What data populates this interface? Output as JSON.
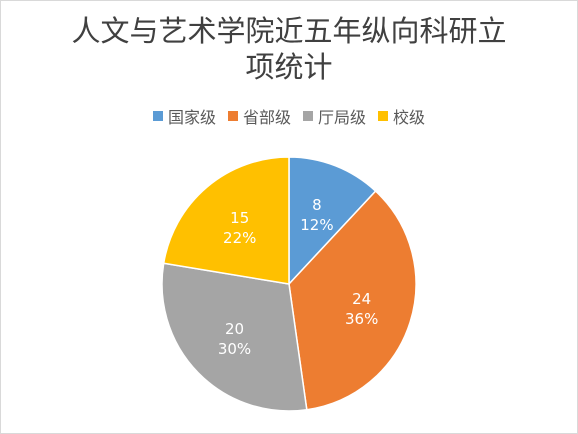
{
  "chart_data": {
    "type": "pie",
    "title_lines": [
      "人文与艺术学院近五年纵向科研立",
      "项统计"
    ],
    "categories": [
      "国家级",
      "省部级",
      "厅局级",
      "校级"
    ],
    "values": [
      8,
      24,
      20,
      15
    ],
    "percent_labels": [
      "12%",
      "36%",
      "30%",
      "22%"
    ],
    "colors": [
      "#5b9bd5",
      "#ed7d31",
      "#a5a5a5",
      "#ffc000"
    ],
    "legend_position": "top",
    "start_angle": "12 o'clock, clockwise"
  }
}
